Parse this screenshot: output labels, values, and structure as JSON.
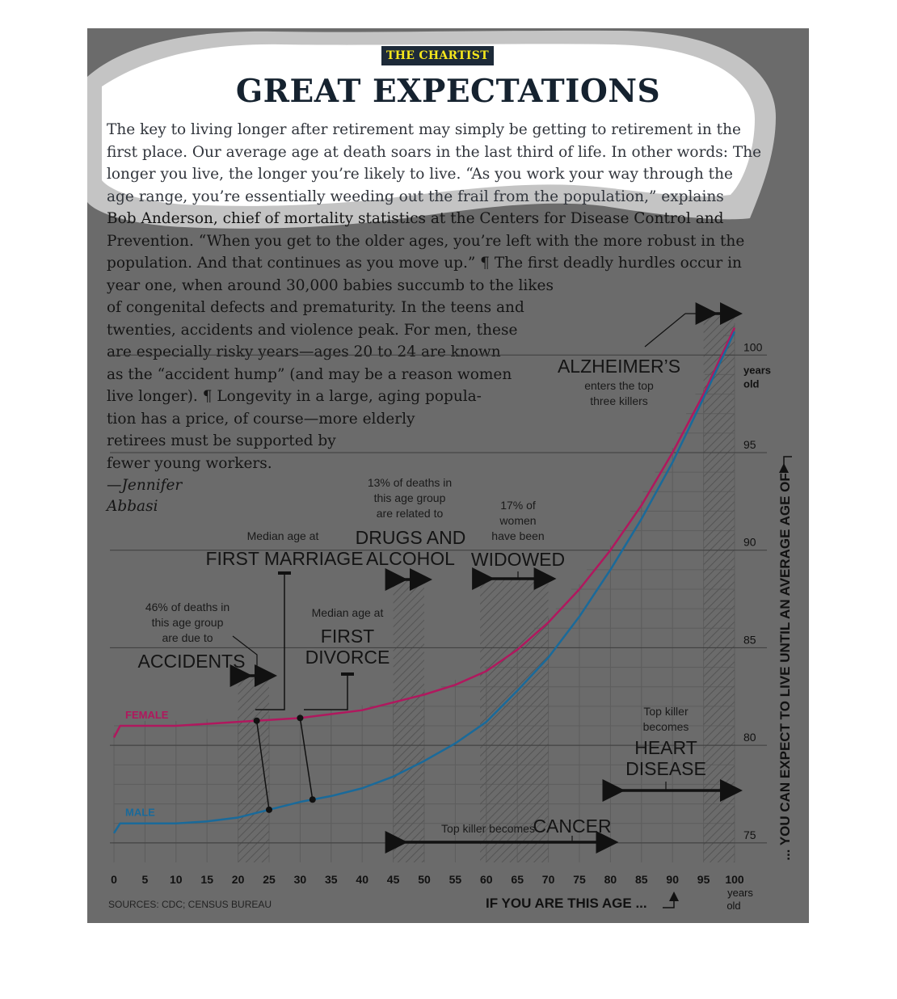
{
  "header": {
    "kicker": "THE CHARTIST",
    "title": "GREAT EXPECTATIONS"
  },
  "body": {
    "lines": [
      "The key to living longer after retirement may simply be getting to retirement in the",
      "first place. Our average age at death soars in the last third of life. In other words: The",
      "longer you live, the longer you’re likely to live. “As you work your way through the",
      "age range, you’re essentially weeding out the frail from the population,” explains",
      "Bob Anderson, chief of mortality statistics at the Centers for Disease Control and",
      "Prevention. “When you get to the older ages, you’re left with the more robust in the",
      "population. And that continues as you move up.” ¶ The first deadly hurdles occur in",
      "year one, when around 30,000 babies succumb to the likes",
      "of congenital defects and prematurity. In the teens and",
      "twenties, accidents and violence peak. For men, these",
      "are especially risky years—ages 20 to 24 are known",
      "as the “accident hump” (and may be a reason women",
      "live longer). ¶ Longevity in a large, aging popula-",
      "tion has a price, of course—more elderly",
      "retirees must be supported by",
      "fewer young workers."
    ],
    "signature": [
      "—Jennifer",
      "Abbasi"
    ]
  },
  "colors": {
    "background": "#6b6b6b",
    "female": "#b0185e",
    "male": "#1a6a9a",
    "kicker_bg": "#1d2a38",
    "kicker_text": "#f4e61c"
  },
  "chart_data": {
    "type": "line",
    "xlabel": "IF YOU ARE THIS AGE ...",
    "ylabel": "... YOU CAN EXPECT TO LIVE UNTIL AN AVERAGE AGE OF",
    "x_ticks": [
      "0",
      "5",
      "10",
      "15",
      "20",
      "25",
      "30",
      "35",
      "40",
      "45",
      "50",
      "55",
      "60",
      "65",
      "70",
      "75",
      "80",
      "85",
      "90",
      "95",
      "100"
    ],
    "x_unit": [
      "years",
      "old"
    ],
    "y_ticks": [
      {
        "value": 75,
        "label": "75"
      },
      {
        "value": 80,
        "label": "80"
      },
      {
        "value": 85,
        "label": "85"
      },
      {
        "value": 90,
        "label": "90"
      },
      {
        "value": 95,
        "label": "95"
      },
      {
        "value": 100,
        "label": "100"
      }
    ],
    "y_unit": [
      "years",
      "old"
    ],
    "xlim": [
      0,
      100
    ],
    "ylim": [
      74,
      102
    ],
    "x": [
      0,
      1,
      5,
      10,
      15,
      20,
      25,
      30,
      35,
      40,
      45,
      50,
      55,
      60,
      65,
      70,
      75,
      80,
      85,
      90,
      95,
      100
    ],
    "series": [
      {
        "name": "FEMALE",
        "values": [
          80.4,
          81.0,
          81.0,
          81.0,
          81.1,
          81.2,
          81.3,
          81.4,
          81.6,
          81.8,
          82.2,
          82.6,
          83.1,
          83.8,
          84.9,
          86.3,
          88.0,
          90.0,
          92.3,
          95.0,
          98.0,
          101.4
        ]
      },
      {
        "name": "MALE",
        "values": [
          75.5,
          76.0,
          76.0,
          76.0,
          76.1,
          76.3,
          76.7,
          77.1,
          77.4,
          77.8,
          78.4,
          79.2,
          80.1,
          81.2,
          82.8,
          84.5,
          86.6,
          89.0,
          91.6,
          94.5,
          97.8,
          101.2
        ]
      }
    ],
    "sources": "SOURCES: CDC; CENSUS BUREAU",
    "annotations": {
      "accidents": {
        "note": [
          "46% of deaths in",
          "this age group",
          "are due to"
        ],
        "label": "ACCIDENTS",
        "range": [
          20,
          25
        ]
      },
      "first_marriage": {
        "note": [
          "Median age at"
        ],
        "label": [
          "FIRST MARRIAGE"
        ],
        "age_female": 23,
        "age_male": 25
      },
      "first_divorce": {
        "note": [
          "Median age at"
        ],
        "label": [
          "FIRST",
          "DIVORCE"
        ],
        "age_female": 30,
        "age_male": 32
      },
      "drugs_alcohol": {
        "note": [
          "13% of deaths in",
          "this age group",
          "are related to"
        ],
        "label": [
          "DRUGS AND",
          "ALCOHOL"
        ],
        "range": [
          45,
          50
        ]
      },
      "widowed": {
        "note": [
          "17% of",
          "women",
          "have been"
        ],
        "label": [
          "WIDOWED"
        ],
        "range": [
          59,
          70
        ]
      },
      "alzheimers": {
        "label": [
          "ALZHEIMER’S"
        ],
        "note": [
          "enters the top",
          "three killers"
        ],
        "range": [
          95,
          100
        ]
      },
      "heart_disease": {
        "note": [
          "Top killer",
          "becomes"
        ],
        "label": [
          "HEART",
          "DISEASE"
        ],
        "range": [
          80,
          100
        ]
      },
      "cancer": {
        "note": "Top killer becomes",
        "label": "CANCER",
        "range": [
          45,
          80
        ]
      }
    }
  }
}
